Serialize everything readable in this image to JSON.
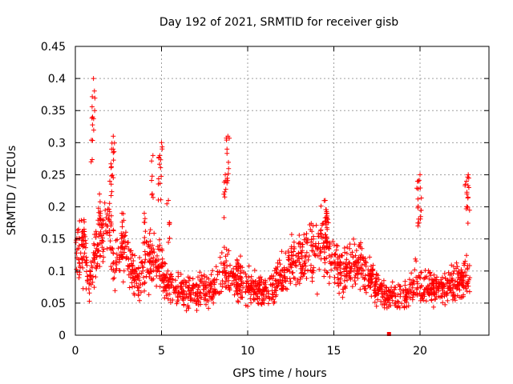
{
  "chart_data": {
    "type": "scatter",
    "title": "Day 192 of 2021, SRMTID for receiver gisb",
    "xlabel": "GPS time / hours",
    "ylabel": "SRMTID / TECUs",
    "xlim": [
      0,
      24
    ],
    "ylim": [
      0,
      0.45
    ],
    "x_ticks": [
      0,
      5,
      10,
      15,
      20
    ],
    "y_ticks": [
      0,
      0.05,
      0.1,
      0.15,
      0.2,
      0.25,
      0.3,
      0.35,
      0.4,
      0.45
    ],
    "x_tick_labels": [
      "0",
      "5",
      "10",
      "15",
      "20"
    ],
    "y_tick_labels": [
      "0",
      "0.05",
      "0.1",
      "0.15",
      "0.2",
      "0.25",
      "0.3",
      "0.35",
      "0.4",
      "0.45"
    ],
    "grid": true,
    "marker": "plus",
    "color": "#ff0000",
    "baseline": [
      [
        0.0,
        0.13
      ],
      [
        0.5,
        0.14
      ],
      [
        0.8,
        0.08
      ],
      [
        1.2,
        0.13
      ],
      [
        1.7,
        0.18
      ],
      [
        2.3,
        0.12
      ],
      [
        2.8,
        0.14
      ],
      [
        3.2,
        0.11
      ],
      [
        3.6,
        0.08
      ],
      [
        4.1,
        0.12
      ],
      [
        4.7,
        0.12
      ],
      [
        5.2,
        0.09
      ],
      [
        5.8,
        0.07
      ],
      [
        6.5,
        0.065
      ],
      [
        7.3,
        0.07
      ],
      [
        8.0,
        0.07
      ],
      [
        8.6,
        0.1
      ],
      [
        9.2,
        0.09
      ],
      [
        9.8,
        0.08
      ],
      [
        10.5,
        0.07
      ],
      [
        11.2,
        0.065
      ],
      [
        11.8,
        0.085
      ],
      [
        12.5,
        0.11
      ],
      [
        13.2,
        0.12
      ],
      [
        13.8,
        0.13
      ],
      [
        14.4,
        0.15
      ],
      [
        14.9,
        0.12
      ],
      [
        15.5,
        0.1
      ],
      [
        16.2,
        0.11
      ],
      [
        16.8,
        0.1
      ],
      [
        17.4,
        0.08
      ],
      [
        18.0,
        0.065
      ],
      [
        18.6,
        0.06
      ],
      [
        19.2,
        0.06
      ],
      [
        19.7,
        0.08
      ],
      [
        20.3,
        0.08
      ],
      [
        20.9,
        0.075
      ],
      [
        21.6,
        0.075
      ],
      [
        22.2,
        0.085
      ],
      [
        22.9,
        0.09
      ]
    ],
    "spikes": [
      [
        0.5,
        0.18
      ],
      [
        1.0,
        0.34
      ],
      [
        1.05,
        0.4
      ],
      [
        1.4,
        0.22
      ],
      [
        2.0,
        0.24
      ],
      [
        2.1,
        0.29
      ],
      [
        2.2,
        0.31
      ],
      [
        2.7,
        0.19
      ],
      [
        4.0,
        0.19
      ],
      [
        4.5,
        0.28
      ],
      [
        4.9,
        0.28
      ],
      [
        5.0,
        0.3
      ],
      [
        5.4,
        0.21
      ],
      [
        8.7,
        0.25
      ],
      [
        8.8,
        0.29
      ],
      [
        8.85,
        0.31
      ],
      [
        14.5,
        0.21
      ],
      [
        14.6,
        0.19
      ],
      [
        19.9,
        0.24
      ],
      [
        20.0,
        0.25
      ],
      [
        22.7,
        0.24
      ],
      [
        22.8,
        0.25
      ]
    ],
    "point_count": 1800,
    "outlier_square": [
      18.2,
      0.0
    ]
  }
}
